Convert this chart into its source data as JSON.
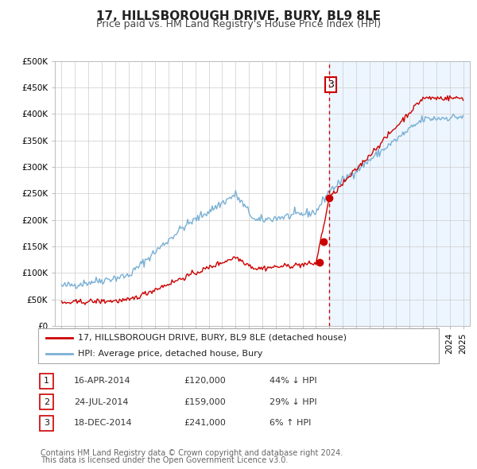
{
  "title": "17, HILLSBOROUGH DRIVE, BURY, BL9 8LE",
  "subtitle": "Price paid vs. HM Land Registry's House Price Index (HPI)",
  "ylim": [
    0,
    500000
  ],
  "ytick_labels": [
    "£0",
    "£50K",
    "£100K",
    "£150K",
    "£200K",
    "£250K",
    "£300K",
    "£350K",
    "£400K",
    "£450K",
    "£500K"
  ],
  "ytick_values": [
    0,
    50000,
    100000,
    150000,
    200000,
    250000,
    300000,
    350000,
    400000,
    450000,
    500000
  ],
  "red_line_color": "#cc0000",
  "blue_line_color": "#7ab0d4",
  "blue_fill_color": "#ddeeff",
  "transaction_marker_color": "#cc0000",
  "dashed_line_color": "#cc0000",
  "annotation_box_color": "#cc0000",
  "transactions": [
    {
      "num": 1,
      "date": "16-APR-2014",
      "price": 120000,
      "pct": "44%",
      "dir": "↓",
      "x": 2014.29
    },
    {
      "num": 2,
      "date": "24-JUL-2014",
      "price": 159000,
      "pct": "29%",
      "dir": "↓",
      "x": 2014.56
    },
    {
      "num": 3,
      "date": "18-DEC-2014",
      "price": 241000,
      "pct": "6%",
      "dir": "↑",
      "x": 2014.96
    }
  ],
  "vline_x": 2014.96,
  "legend_line1": "17, HILLSBOROUGH DRIVE, BURY, BL9 8LE (detached house)",
  "legend_line2": "HPI: Average price, detached house, Bury",
  "footer_line1": "Contains HM Land Registry data © Crown copyright and database right 2024.",
  "footer_line2": "This data is licensed under the Open Government Licence v3.0.",
  "background_color": "#ffffff",
  "grid_color": "#cccccc",
  "title_fontsize": 11,
  "subtitle_fontsize": 9,
  "tick_fontsize": 7.5,
  "legend_fontsize": 8,
  "table_fontsize": 8,
  "footer_fontsize": 7
}
